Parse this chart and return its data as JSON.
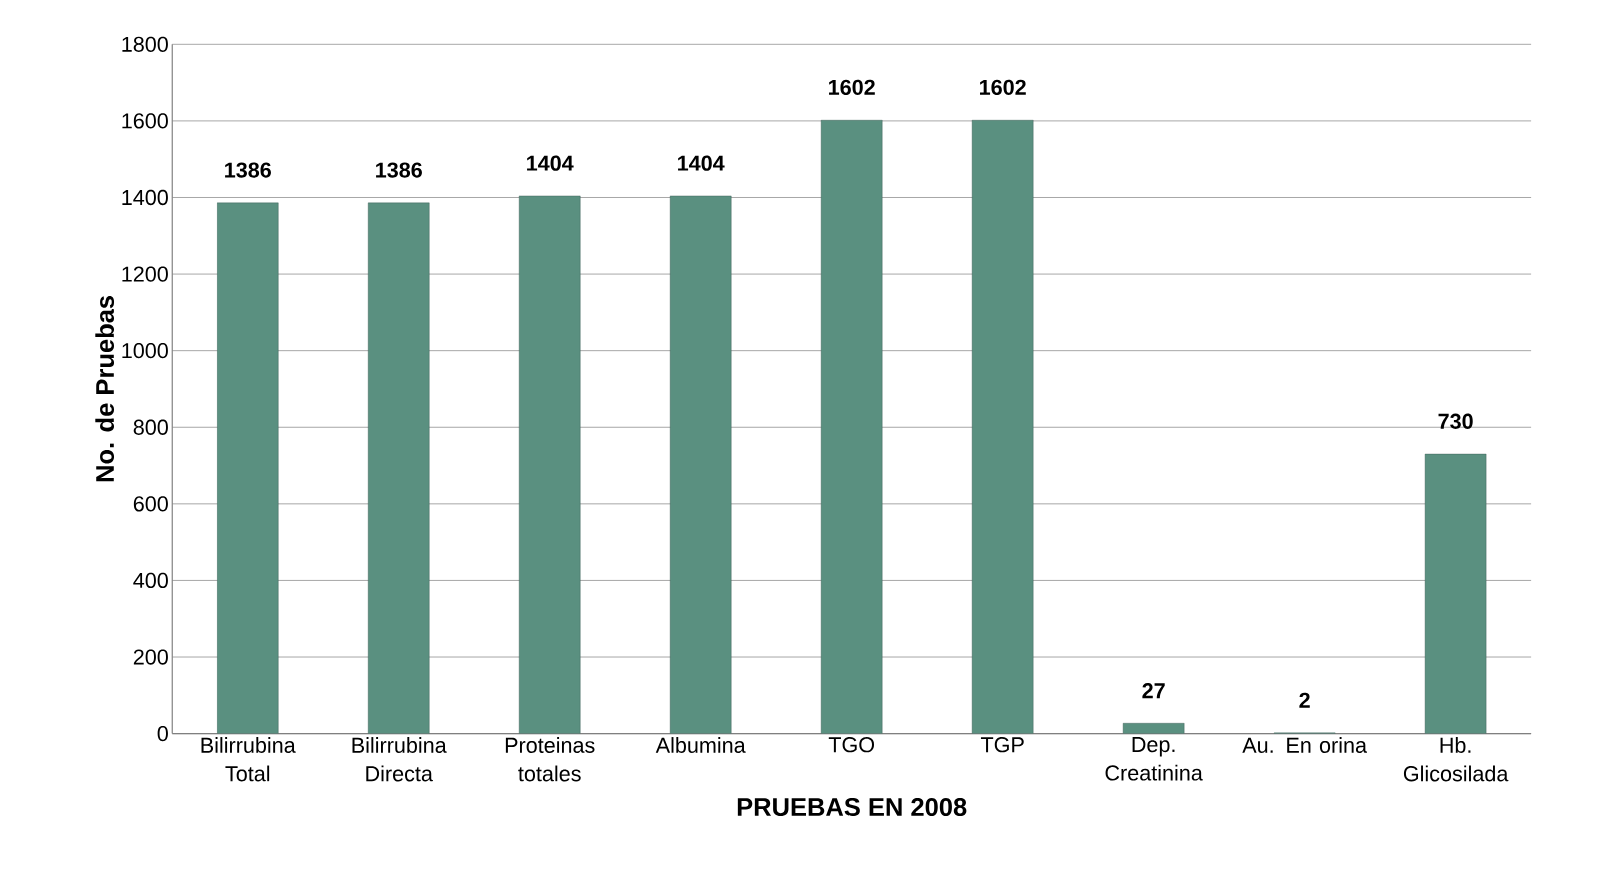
{
  "chart_data": {
    "type": "bar",
    "xlabel": "PRUEBAS EN 2008",
    "ylabel": "No. de Pruebas",
    "categories": [
      "Bilirrubina Total",
      "Bilirrubina Directa",
      "Proteinas totales",
      "Albumina",
      "TGO",
      "TGP",
      "Dep. Creatinina",
      "Au. En orina",
      "Hb. Glicosilada"
    ],
    "values": [
      1386,
      1386,
      1404,
      1404,
      1602,
      1602,
      27,
      2,
      730
    ],
    "color": "#5a9080",
    "ylim": [
      0,
      1800
    ],
    "yticks": [
      0,
      200,
      400,
      600,
      800,
      1000,
      1200,
      1400,
      1600,
      1800
    ],
    "grid": "y",
    "data_labels": true
  }
}
